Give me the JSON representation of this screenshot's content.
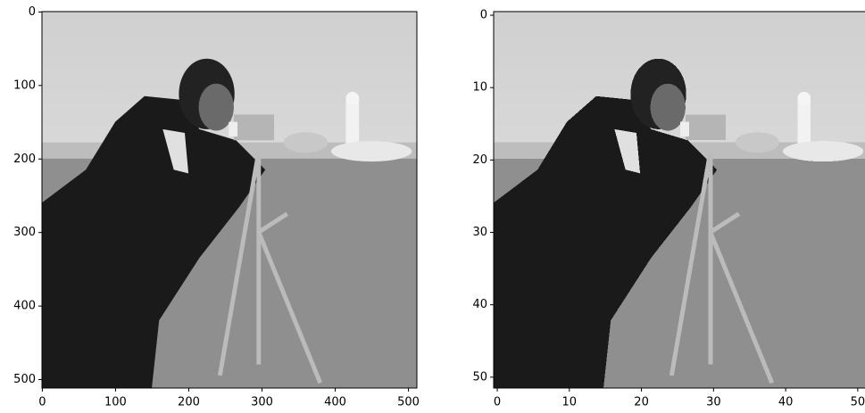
{
  "chart_data": [
    {
      "type": "image",
      "xlim": [
        -0.5,
        511.5
      ],
      "ylim": [
        511.5,
        -0.5
      ],
      "xticks": [
        0,
        100,
        200,
        300,
        400,
        500
      ],
      "yticks": [
        0,
        100,
        200,
        300,
        400,
        500
      ]
    },
    {
      "type": "image",
      "xlim": [
        -0.5,
        51.5
      ],
      "ylim": [
        51.5,
        -0.5
      ],
      "xticks": [
        0,
        10,
        20,
        30,
        40,
        50
      ],
      "yticks": [
        0,
        10,
        20,
        30,
        40,
        50
      ]
    }
  ]
}
